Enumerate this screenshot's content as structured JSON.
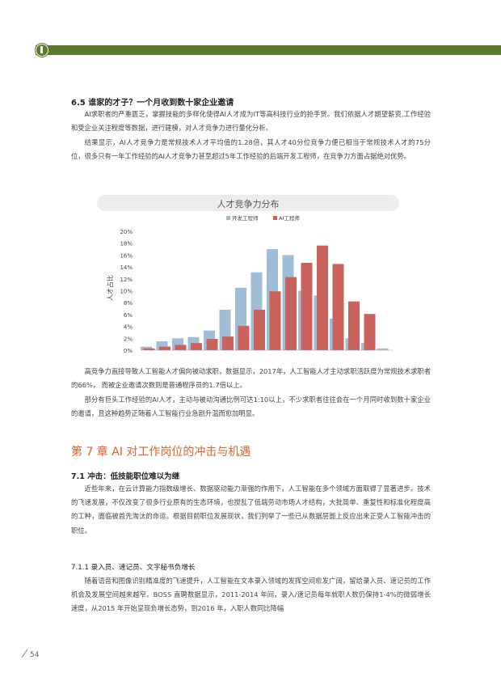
{
  "section_6_5": {
    "title": "6.5  谁家的才子？一个月收到数十家企业邀请",
    "p1": "AI求职者的严重匮乏，掌握技能的多样化使得AI人才成为IT等高科技行业的抢手货。我们依据人才期望薪资,工作经验和受企业关注程度等数据，进行建模，对人才竞争力进行量化分析。",
    "p2": "结果显示，AI人才竞争力是常规技术人才平均值的1.28倍，其人才40分位竞争力便已相当于常规技术人才的75分位，很多只有一年工作经验的AI人才竞争力甚至超过5年工作经验的后端开发工程师，在竞争力方面占据绝对优势。",
    "p3": "高竞争力直接导致人工智能人才偏向被动求职，数据显示，2017年，人工智能人才主动求职活跃度为常规技术求职者的66%， 而被企业邀请次数则是普通程序员的1.7倍以上。",
    "p4": "部分有巨头工作经验的AI人才，主动与被动沟通比例可达1:10以上，不少求职者往往会在一个月同时收到数十家企业的邀请，且这种趋势正随着人工智能行业急剧升温而愈加明显。"
  },
  "chart_data": {
    "type": "bar",
    "title": "人才竞争力分布",
    "ylabel": "人才占比",
    "xlabel": "",
    "ylim": [
      0,
      20
    ],
    "yticks": [
      "0%",
      "2%",
      "4%",
      "6%",
      "8%",
      "10%",
      "12%",
      "14%",
      "16%",
      "18%",
      "20%"
    ],
    "legend_position": "top",
    "x": [
      1,
      2,
      3,
      4,
      5,
      6,
      7,
      8,
      9,
      10,
      11,
      12,
      13,
      14,
      15,
      16
    ],
    "series": [
      {
        "name": "开发工程师",
        "color": "#9fbdd6",
        "values": [
          0.6,
          1.5,
          2.0,
          2.2,
          3.3,
          6.8,
          10.5,
          13.1,
          17.0,
          16.0,
          10.0,
          9.2,
          5.3,
          2.0,
          1.2,
          0.3
        ]
      },
      {
        "name": "AI工程师",
        "color": "#c9625b",
        "values": [
          0.3,
          0.6,
          0.9,
          1.2,
          1.9,
          2.3,
          4.1,
          6.8,
          9.9,
          12.3,
          14.7,
          17.6,
          14.5,
          8.2,
          6.1,
          0
        ]
      }
    ]
  },
  "chapter7": {
    "title": "第 7 章 AI 对工作岗位的冲击与机遇",
    "s71_title": "7.1  冲击：低技能职位难以为继",
    "s71_p": "近些年来，在云计算能力指数级增长、数据驱动能力渐强的作用下，人工智能在多个领域方面取得了显著进步。技术的飞速发展，不仅改变了很多行业原有的生态环境，也搅乱了低端劳动市场人才结构，大批简单、重复性和标准化程度高的工种，面临被首先淘汰的命运。根据目前职位发展现状，我们列举了一些已从数据层面上反应出来正受人工智能冲击的职位。",
    "s711_title": "7.1.1 录入员、速记员、文字秘书负增长",
    "s711_p": "随着语音和图像识别精准度的飞速提升，人工智能在文本录入领域的发挥空间愈发广阔，留给录入员、速记员的工作机会及发展空间越来越窄。BOSS 直聘数据显示，2011-2014 年间，录入/速记员每年就职人数仍保持1-4%的微弱增长速度，从2015 年开始呈现负增长态势，到2016 年，入职人数同比降幅"
  },
  "page_number": "54"
}
